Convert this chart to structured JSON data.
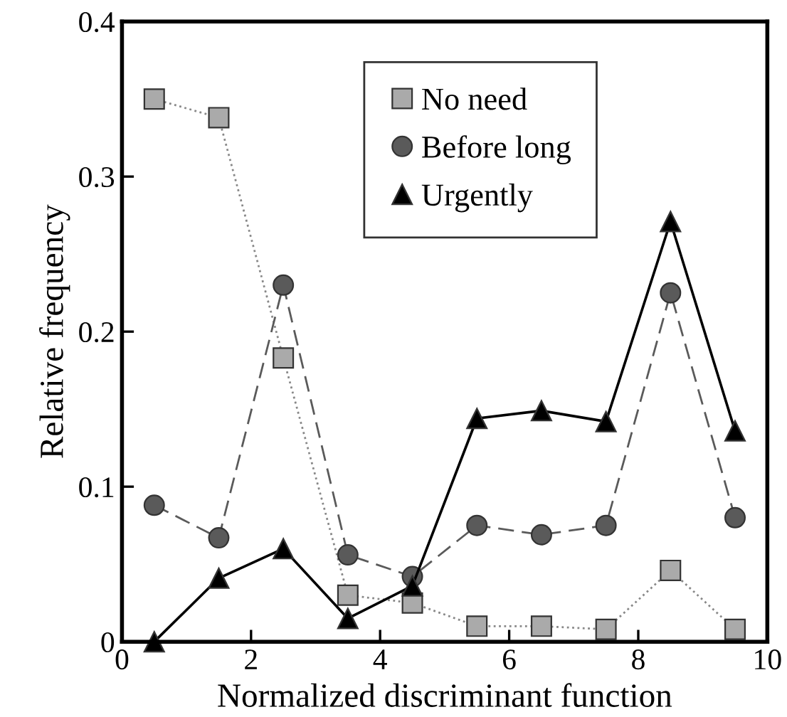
{
  "chart_data": {
    "type": "line",
    "xlabel": "Normalized discriminant function",
    "ylabel": "Relative frequency",
    "x": [
      0.5,
      1.5,
      2.5,
      3.5,
      4.5,
      5.5,
      6.5,
      7.5,
      8.5,
      9.5
    ],
    "xlim": [
      0,
      10
    ],
    "xticks": [
      0,
      2,
      4,
      6,
      8,
      10
    ],
    "ylim": [
      0,
      0.4
    ],
    "yticks": [
      0,
      0.1,
      0.2,
      0.3,
      0.4
    ],
    "grid": false,
    "legend": "top right",
    "series": [
      {
        "name": "No need",
        "color": "#aaaaaa",
        "marker": "square",
        "line_style": "dotted",
        "values": [
          0.35,
          0.338,
          0.183,
          0.03,
          0.025,
          0.01,
          0.01,
          0.008,
          0.046,
          0.008
        ]
      },
      {
        "name": "Before long",
        "color": "#5a5a5a",
        "marker": "circle",
        "line_style": "dashed",
        "values": [
          0.088,
          0.067,
          0.23,
          0.056,
          0.042,
          0.075,
          0.069,
          0.075,
          0.225,
          0.08
        ]
      },
      {
        "name": "Urgently",
        "color": "#000000",
        "marker": "triangle",
        "line_style": "solid",
        "values": [
          0,
          0.041,
          0.06,
          0.015,
          0.036,
          0.144,
          0.149,
          0.142,
          0.271,
          0.136
        ]
      }
    ]
  }
}
